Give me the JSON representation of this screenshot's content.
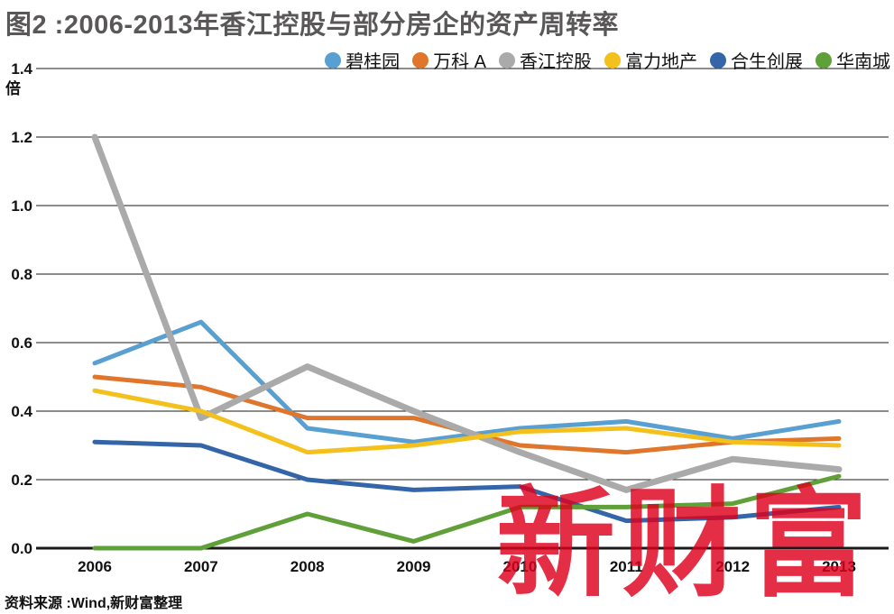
{
  "figure_title": "图2 :2006-2013年香江控股与部分房企的资产周转率",
  "source_note": "资料来源 :Wind,新财富整理",
  "watermark_text": "新财富",
  "chart_data": {
    "type": "line",
    "title": "图2 :2006-2013年香江控股与部分房企的资产周转率",
    "xlabel": "",
    "ylabel": "倍",
    "ylim": [
      0,
      1.4
    ],
    "y_tick_labels": [
      "0.0",
      "0.2",
      "0.4",
      "0.6",
      "0.8",
      "1.0",
      "1.2",
      "1.4"
    ],
    "grid": true,
    "legend_position": "top-right",
    "categories": [
      "2006",
      "2007",
      "2008",
      "2009",
      "2010",
      "2011",
      "2012",
      "2013"
    ],
    "series": [
      {
        "name": "碧桂园",
        "color": "#58A0D2",
        "values": [
          0.54,
          0.66,
          0.35,
          0.31,
          0.35,
          0.37,
          0.32,
          0.37
        ]
      },
      {
        "name": "万科 A",
        "color": "#E0762C",
        "values": [
          0.5,
          0.47,
          0.38,
          0.38,
          0.3,
          0.28,
          0.31,
          0.32
        ]
      },
      {
        "name": "香江控股",
        "color": "#AAAAAA",
        "values": [
          1.2,
          0.38,
          0.53,
          0.4,
          0.28,
          0.17,
          0.26,
          0.23
        ]
      },
      {
        "name": "富力地产",
        "color": "#F3C01C",
        "values": [
          0.46,
          0.4,
          0.28,
          0.3,
          0.34,
          0.35,
          0.31,
          0.3
        ]
      },
      {
        "name": "合生创展",
        "color": "#3465A8",
        "values": [
          0.31,
          0.3,
          0.2,
          0.17,
          0.18,
          0.08,
          0.09,
          0.12
        ]
      },
      {
        "name": "华南城",
        "color": "#5FA038",
        "values": [
          0.0,
          0.0,
          0.1,
          0.02,
          0.12,
          0.12,
          0.13,
          0.21
        ]
      }
    ]
  }
}
